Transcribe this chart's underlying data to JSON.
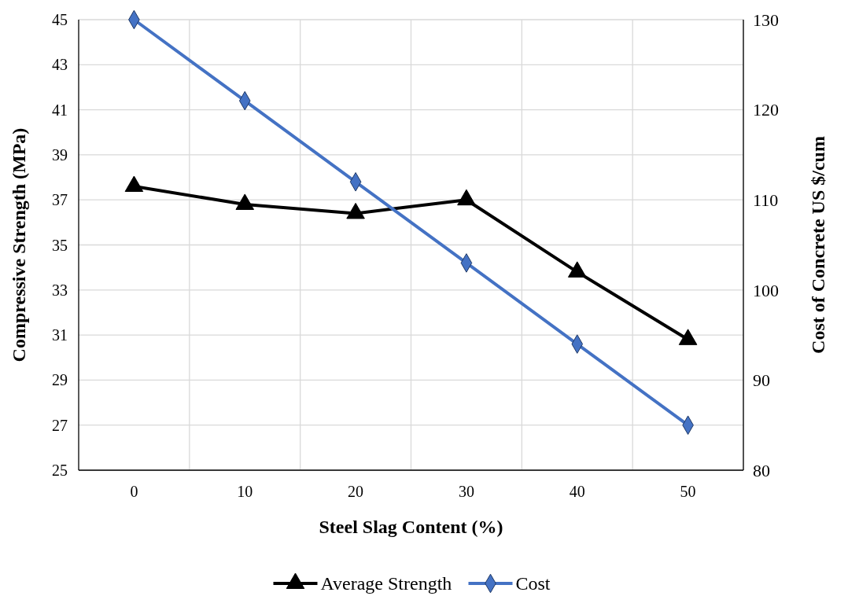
{
  "chart_data": {
    "type": "line",
    "xlabel": "Steel Slag Content (%)",
    "ylabel": "Compressive Strength (MPa)",
    "y2label": "Cost of Concrete US $/cum",
    "categories": [
      "0",
      "10",
      "20",
      "30",
      "40",
      "50"
    ],
    "series": [
      {
        "name": "Average Strength",
        "color": "#000000",
        "marker": "triangle",
        "values": [
          37.6,
          36.8,
          36.4,
          37.0,
          33.8,
          30.8
        ]
      },
      {
        "name": "Cost",
        "color": "#4472c4",
        "marker": "diamond",
        "axis": "y2",
        "values": [
          130,
          121,
          112,
          103,
          94,
          85
        ]
      }
    ],
    "ylim": [
      25,
      45
    ],
    "yticks": [
      25,
      27,
      29,
      31,
      33,
      35,
      37,
      39,
      41,
      43,
      45
    ],
    "y2lim": [
      80,
      130
    ],
    "y2ticks": [
      80,
      90,
      100,
      110,
      120,
      130
    ],
    "grid": true,
    "legend": "bottom"
  }
}
